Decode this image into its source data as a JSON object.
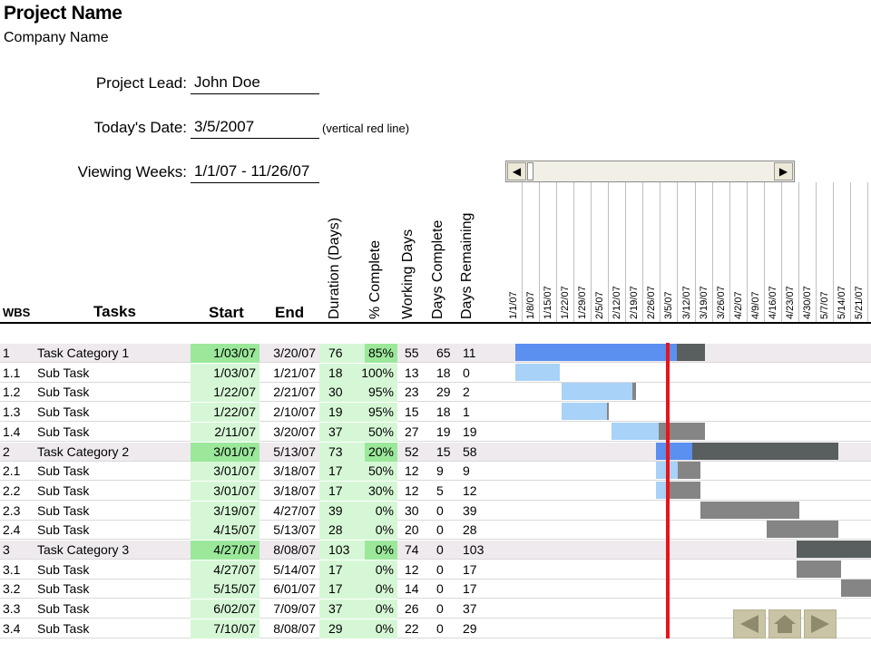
{
  "header": {
    "project_title": "Project Name",
    "company_name": "Company Name"
  },
  "form": {
    "project_lead_label": "Project Lead:",
    "project_lead_value": "John Doe",
    "todays_date_label": "Today's Date:",
    "todays_date_value": "3/5/2007",
    "todays_date_note": "(vertical red line)",
    "viewing_weeks_label": "Viewing Weeks:",
    "viewing_weeks_value": "1/1/07 - 11/26/07"
  },
  "columns": {
    "wbs": "WBS",
    "tasks": "Tasks",
    "start": "Start",
    "end": "End",
    "duration": "Duration (Days)",
    "percent_complete": "% Complete",
    "working_days": "Working Days",
    "days_complete": "Days Complete",
    "days_remaining": "Days Remaining"
  },
  "week_headers": [
    "1/1/07",
    "1/8/07",
    "1/15/07",
    "1/22/07",
    "1/29/07",
    "2/5/07",
    "2/12/07",
    "2/19/07",
    "2/26/07",
    "3/5/07",
    "3/12/07",
    "3/19/07",
    "3/26/07",
    "4/2/07",
    "4/9/07",
    "4/16/07",
    "4/23/07",
    "4/30/07",
    "5/7/07",
    "5/14/07",
    "5/21/07"
  ],
  "tasks": [
    {
      "wbs": "1",
      "name": "Task Category 1",
      "start": "1/03/07",
      "end": "3/20/07",
      "duration": "76",
      "pct": "85%",
      "working": "55",
      "done": "65",
      "remaining": "11",
      "category": true,
      "start_day": 2,
      "end_day": 79,
      "progress": 0.85
    },
    {
      "wbs": "1.1",
      "name": "Sub Task",
      "start": "1/03/07",
      "end": "1/21/07",
      "duration": "18",
      "pct": "100%",
      "working": "13",
      "done": "18",
      "remaining": "0",
      "category": false,
      "start_day": 2,
      "end_day": 20,
      "progress": 1.0
    },
    {
      "wbs": "1.2",
      "name": "Sub Task",
      "start": "1/22/07",
      "end": "2/21/07",
      "duration": "30",
      "pct": "95%",
      "working": "23",
      "done": "29",
      "remaining": "2",
      "category": false,
      "start_day": 21,
      "end_day": 51,
      "progress": 0.95
    },
    {
      "wbs": "1.3",
      "name": "Sub Task",
      "start": "1/22/07",
      "end": "2/10/07",
      "duration": "19",
      "pct": "95%",
      "working": "15",
      "done": "18",
      "remaining": "1",
      "category": false,
      "start_day": 21,
      "end_day": 40,
      "progress": 0.95
    },
    {
      "wbs": "1.4",
      "name": "Sub Task",
      "start": "2/11/07",
      "end": "3/20/07",
      "duration": "37",
      "pct": "50%",
      "working": "27",
      "done": "19",
      "remaining": "19",
      "category": false,
      "start_day": 41,
      "end_day": 79,
      "progress": 0.5
    },
    {
      "wbs": "2",
      "name": "Task Category 2",
      "start": "3/01/07",
      "end": "5/13/07",
      "duration": "73",
      "pct": "20%",
      "working": "52",
      "done": "15",
      "remaining": "58",
      "category": true,
      "start_day": 59,
      "end_day": 133,
      "progress": 0.2
    },
    {
      "wbs": "2.1",
      "name": "Sub Task",
      "start": "3/01/07",
      "end": "3/18/07",
      "duration": "17",
      "pct": "50%",
      "working": "12",
      "done": "9",
      "remaining": "9",
      "category": false,
      "start_day": 59,
      "end_day": 77,
      "progress": 0.5
    },
    {
      "wbs": "2.2",
      "name": "Sub Task",
      "start": "3/01/07",
      "end": "3/18/07",
      "duration": "17",
      "pct": "30%",
      "working": "12",
      "done": "5",
      "remaining": "12",
      "category": false,
      "start_day": 59,
      "end_day": 77,
      "progress": 0.3
    },
    {
      "wbs": "2.3",
      "name": "Sub Task",
      "start": "3/19/07",
      "end": "4/27/07",
      "duration": "39",
      "pct": "0%",
      "working": "30",
      "done": "0",
      "remaining": "39",
      "category": false,
      "start_day": 77,
      "end_day": 117,
      "progress": 0
    },
    {
      "wbs": "2.4",
      "name": "Sub Task",
      "start": "4/15/07",
      "end": "5/13/07",
      "duration": "28",
      "pct": "0%",
      "working": "20",
      "done": "0",
      "remaining": "28",
      "category": false,
      "start_day": 104,
      "end_day": 133,
      "progress": 0
    },
    {
      "wbs": "3",
      "name": "Task Category 3",
      "start": "4/27/07",
      "end": "8/08/07",
      "duration": "103",
      "pct": "0%",
      "working": "74",
      "done": "0",
      "remaining": "103",
      "category": true,
      "start_day": 116,
      "end_day": 219,
      "progress": 0
    },
    {
      "wbs": "3.1",
      "name": "Sub Task",
      "start": "4/27/07",
      "end": "5/14/07",
      "duration": "17",
      "pct": "0%",
      "working": "12",
      "done": "0",
      "remaining": "17",
      "category": false,
      "start_day": 116,
      "end_day": 134,
      "progress": 0
    },
    {
      "wbs": "3.2",
      "name": "Sub Task",
      "start": "5/15/07",
      "end": "6/01/07",
      "duration": "17",
      "pct": "0%",
      "working": "14",
      "done": "0",
      "remaining": "17",
      "category": false,
      "start_day": 134,
      "end_day": 152,
      "progress": 0
    },
    {
      "wbs": "3.3",
      "name": "Sub Task",
      "start": "6/02/07",
      "end": "7/09/07",
      "duration": "37",
      "pct": "0%",
      "working": "26",
      "done": "0",
      "remaining": "37",
      "category": false,
      "start_day": 152,
      "end_day": 190,
      "progress": 0
    },
    {
      "wbs": "3.4",
      "name": "Sub Task",
      "start": "7/10/07",
      "end": "8/08/07",
      "duration": "29",
      "pct": "0%",
      "working": "22",
      "done": "0",
      "remaining": "29",
      "category": false,
      "start_day": 190,
      "end_day": 219,
      "progress": 0
    }
  ],
  "today_day": 63,
  "colors": {
    "category_done": "#5b8ff0",
    "category_remaining": "#595e5e",
    "subtask_done": "#a8d2f7",
    "subtask_remaining": "#858585",
    "today_line": "#e8141b",
    "start_fill": "#9be89b",
    "start_fill_light": "#d6f7d6",
    "pct_fill": "#9be89b",
    "pct_fill_light": "#d6f7d6"
  },
  "nav_icons": [
    "arrow-left-icon",
    "home-icon",
    "arrow-right-icon"
  ]
}
